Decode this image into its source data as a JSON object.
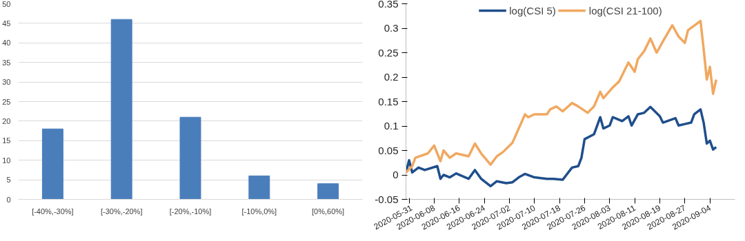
{
  "chart_data": [
    {
      "type": "bar",
      "categories": [
        "[-40%,-30%]",
        "[-30%,-20%]",
        "[-20%,-10%]",
        "[-10%,0%]",
        "[0%,60%]"
      ],
      "values": [
        18,
        46,
        21,
        6,
        4
      ],
      "color": "#4a7ebb",
      "ylim": [
        0,
        50
      ],
      "yticks": [
        0,
        5,
        10,
        15,
        20,
        25,
        30,
        35,
        40,
        45,
        50
      ],
      "grid": "y",
      "legend": false
    },
    {
      "type": "line",
      "legend": "top",
      "grid": false,
      "ylim": [
        -0.05,
        0.35
      ],
      "yticks": [
        -0.05,
        0,
        0.05,
        0.1,
        0.15,
        0.2,
        0.25,
        0.3,
        0.35
      ],
      "xlim": [
        "2020-05-30",
        "2020-09-12"
      ],
      "xticks": [
        "2020-05-31",
        "2020-06-08",
        "2020-06-16",
        "2020-06-24",
        "2020-07-02",
        "2020-07-10",
        "2020-07-18",
        "2020-07-26",
        "2020-08-03",
        "2020-08-11",
        "2020-08-19",
        "2020-08-27",
        "2020-09-04"
      ],
      "series": [
        {
          "name": "log(CSI 5)",
          "color": "#1f4e8c",
          "x": [
            "2020-05-30",
            "2020-05-31",
            "2020-06-01",
            "2020-06-03",
            "2020-06-05",
            "2020-06-09",
            "2020-06-10",
            "2020-06-11",
            "2020-06-13",
            "2020-06-15",
            "2020-06-19",
            "2020-06-21",
            "2020-06-23",
            "2020-06-26",
            "2020-06-28",
            "2020-07-01",
            "2020-07-03",
            "2020-07-05",
            "2020-07-07",
            "2020-07-10",
            "2020-07-14",
            "2020-07-16",
            "2020-07-19",
            "2020-07-22",
            "2020-07-24",
            "2020-07-25",
            "2020-07-26",
            "2020-07-29",
            "2020-07-31",
            "2020-08-01",
            "2020-08-03",
            "2020-08-04",
            "2020-08-07",
            "2020-08-09",
            "2020-08-10",
            "2020-08-12",
            "2020-08-14",
            "2020-08-16",
            "2020-08-19",
            "2020-08-20",
            "2020-08-24",
            "2020-08-25",
            "2020-08-27",
            "2020-08-29",
            "2020-08-30",
            "2020-09-01",
            "2020-09-02",
            "2020-09-03",
            "2020-09-04",
            "2020-09-05",
            "2020-09-06"
          ],
          "values": [
            0.005,
            0.03,
            0.005,
            0.015,
            0.01,
            0.018,
            -0.008,
            0,
            -0.005,
            0.003,
            -0.008,
            0.01,
            -0.008,
            -0.023,
            -0.013,
            -0.017,
            -0.015,
            -0.005,
            0.002,
            -0.005,
            -0.008,
            -0.008,
            -0.01,
            0.015,
            0.018,
            0.035,
            0.073,
            0.083,
            0.118,
            0.095,
            0.101,
            0.118,
            0.11,
            0.12,
            0.101,
            0.124,
            0.127,
            0.139,
            0.12,
            0.107,
            0.116,
            0.101,
            0.104,
            0.107,
            0.124,
            0.134,
            0.107,
            0.064,
            0.07,
            0.052,
            0.057
          ]
        },
        {
          "name": "log(CSI 21-100)",
          "color": "#f0a860",
          "x": [
            "2020-05-30",
            "2020-06-01",
            "2020-06-02",
            "2020-06-06",
            "2020-06-08",
            "2020-06-10",
            "2020-06-11",
            "2020-06-13",
            "2020-06-15",
            "2020-06-19",
            "2020-06-21",
            "2020-06-23",
            "2020-06-26",
            "2020-06-28",
            "2020-06-30",
            "2020-07-03",
            "2020-07-05",
            "2020-07-07",
            "2020-07-08",
            "2020-07-10",
            "2020-07-14",
            "2020-07-15",
            "2020-07-17",
            "2020-07-19",
            "2020-07-22",
            "2020-07-24",
            "2020-07-27",
            "2020-07-29",
            "2020-07-31",
            "2020-08-01",
            "2020-08-04",
            "2020-08-06",
            "2020-08-07",
            "2020-08-09",
            "2020-08-11",
            "2020-08-12",
            "2020-08-14",
            "2020-08-16",
            "2020-08-18",
            "2020-08-20",
            "2020-08-23",
            "2020-08-25",
            "2020-08-27",
            "2020-08-28",
            "2020-09-01",
            "2020-09-02",
            "2020-09-03",
            "2020-09-04",
            "2020-09-05",
            "2020-09-06"
          ],
          "values": [
            0.005,
            0.018,
            0.035,
            0.044,
            0.06,
            0.028,
            0.05,
            0.035,
            0.044,
            0.038,
            0.064,
            0.044,
            0.021,
            0.038,
            0.047,
            0.066,
            0.095,
            0.124,
            0.118,
            0.124,
            0.124,
            0.134,
            0.14,
            0.13,
            0.147,
            0.14,
            0.127,
            0.14,
            0.17,
            0.157,
            0.179,
            0.191,
            0.204,
            0.23,
            0.211,
            0.237,
            0.253,
            0.279,
            0.25,
            0.273,
            0.306,
            0.283,
            0.27,
            0.296,
            0.315,
            0.257,
            0.195,
            0.221,
            0.166,
            0.195
          ]
        }
      ]
    }
  ]
}
